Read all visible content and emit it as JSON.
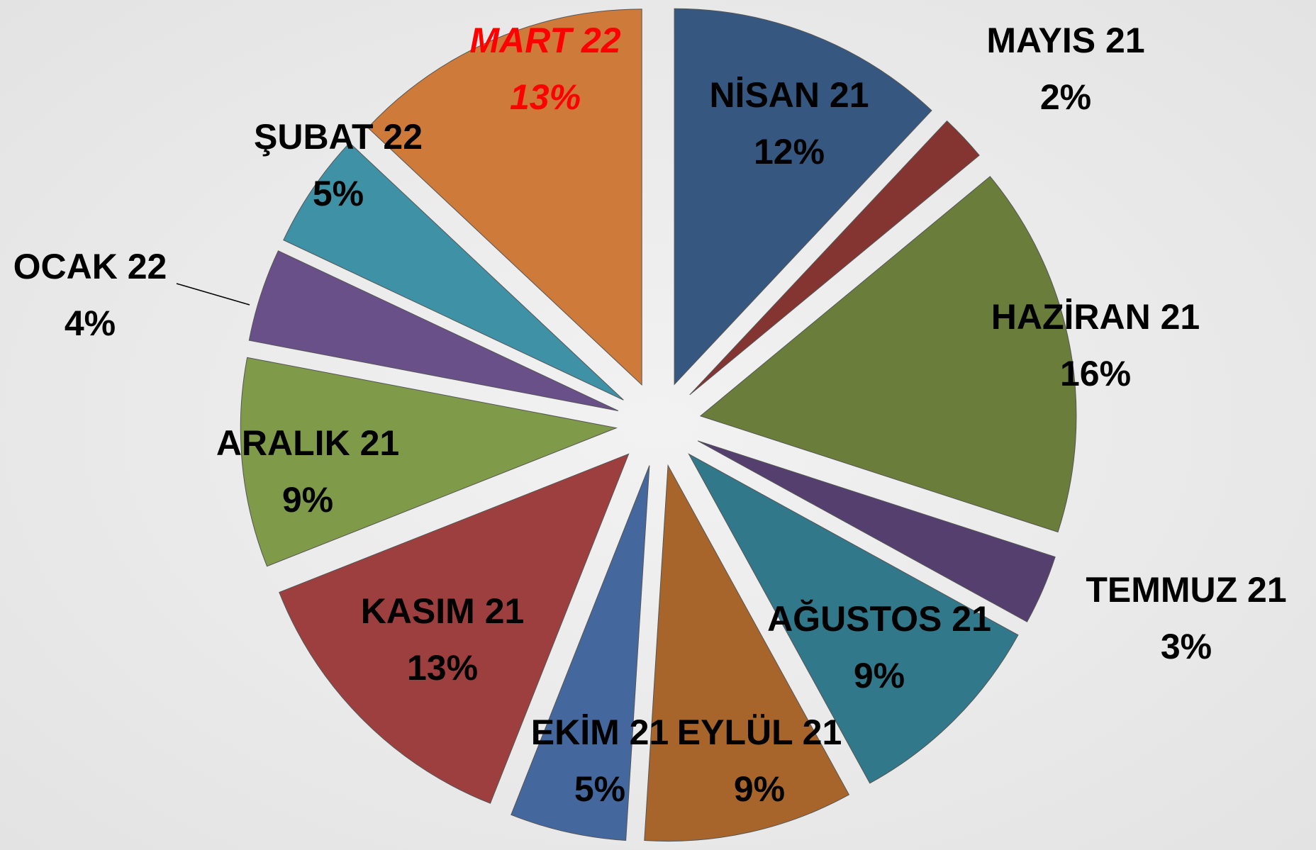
{
  "chart_data": {
    "type": "pie",
    "categories": [
      "NİSAN 21",
      "MAYIS 21",
      "HAZİRAN 21",
      "TEMMUZ 21",
      "AĞUSTOS 21",
      "EYLÜL 21",
      "EKİM 21",
      "KASIM 21",
      "ARALIK 21",
      "OCAK 22",
      "ŞUBAT 22",
      "MART 22"
    ],
    "values": [
      12,
      2,
      16,
      3,
      9,
      9,
      5,
      13,
      9,
      4,
      5,
      13
    ],
    "value_labels": [
      "12%",
      "2%",
      "16%",
      "3%",
      "9%",
      "9%",
      "5%",
      "13%",
      "9%",
      "4%",
      "5%",
      "13%"
    ],
    "colors": [
      "#36577f",
      "#843532",
      "#6a7d3a",
      "#553f6e",
      "#31788a",
      "#a8652b",
      "#44689e",
      "#9e3f3f",
      "#7f9b4a",
      "#6a5089",
      "#3f92a6",
      "#cd7a3a"
    ],
    "label_colors": [
      "#000000",
      "#000000",
      "#000000",
      "#000000",
      "#000000",
      "#000000",
      "#000000",
      "#000000",
      "#000000",
      "#000000",
      "#000000",
      "#ff0000"
    ],
    "exploded": true
  }
}
